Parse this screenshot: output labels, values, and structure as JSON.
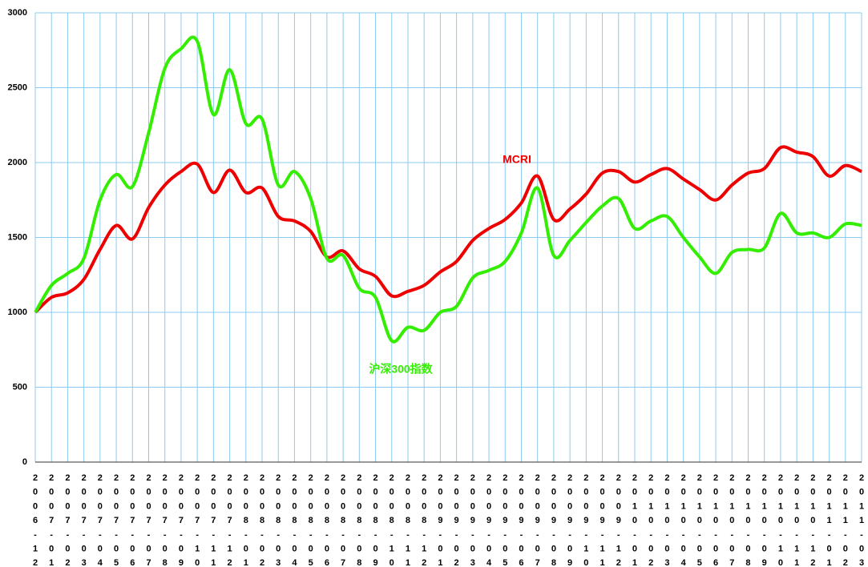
{
  "chart_data": {
    "type": "line",
    "categories": [
      "2006-12",
      "2007-01",
      "2007-02",
      "2007-03",
      "2007-04",
      "2007-05",
      "2007-06",
      "2007-07",
      "2007-08",
      "2007-09",
      "2007-10",
      "2007-11",
      "2007-12",
      "2008-01",
      "2008-02",
      "2008-03",
      "2008-04",
      "2008-05",
      "2008-06",
      "2008-07",
      "2008-08",
      "2008-09",
      "2008-10",
      "2008-11",
      "2008-12",
      "2009-01",
      "2009-02",
      "2009-03",
      "2009-04",
      "2009-05",
      "2009-06",
      "2009-07",
      "2009-08",
      "2009-09",
      "2009-10",
      "2009-11",
      "2009-12",
      "2010-01",
      "2010-02",
      "2010-03",
      "2010-04",
      "2010-05",
      "2010-06",
      "2010-07",
      "2010-08",
      "2010-09",
      "2010-10",
      "2010-11",
      "2010-12",
      "2011-01",
      "2011-02",
      "2011-03"
    ],
    "series": [
      {
        "name": "MCRI",
        "color": "#ee0000",
        "values": [
          1000,
          1100,
          1130,
          1220,
          1420,
          1580,
          1490,
          1700,
          1850,
          1940,
          1990,
          1800,
          1950,
          1800,
          1830,
          1640,
          1610,
          1540,
          1370,
          1410,
          1290,
          1240,
          1110,
          1140,
          1180,
          1270,
          1340,
          1480,
          1560,
          1620,
          1730,
          1910,
          1620,
          1690,
          1790,
          1930,
          1940,
          1870,
          1920,
          1960,
          1890,
          1820,
          1750,
          1850,
          1930,
          1960,
          2100,
          2070,
          2040,
          1910,
          1980,
          1940
        ]
      },
      {
        "name": "沪深300指数",
        "color": "#33ee00",
        "values": [
          1000,
          1180,
          1260,
          1360,
          1750,
          1920,
          1840,
          2200,
          2630,
          2760,
          2810,
          2320,
          2620,
          2260,
          2290,
          1850,
          1940,
          1760,
          1360,
          1380,
          1160,
          1100,
          810,
          900,
          880,
          1000,
          1040,
          1230,
          1280,
          1340,
          1530,
          1830,
          1380,
          1480,
          1600,
          1710,
          1760,
          1560,
          1610,
          1640,
          1500,
          1370,
          1260,
          1400,
          1420,
          1430,
          1660,
          1530,
          1530,
          1500,
          1590,
          1580
        ]
      }
    ],
    "ylim": [
      0,
      3000
    ],
    "yticks": [
      0,
      500,
      1000,
      1500,
      2000,
      2500,
      3000
    ],
    "grid": true
  }
}
